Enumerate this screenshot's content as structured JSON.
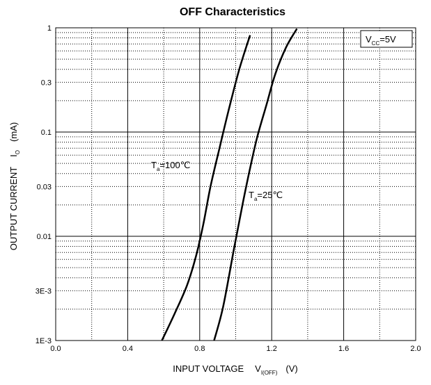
{
  "chart_data": {
    "type": "line",
    "title": "OFF Characteristics",
    "xlabel": {
      "main": "INPUT VOLTAGE",
      "symbol": "V",
      "subscript": "I(OFF)",
      "unit": "(V)"
    },
    "ylabel": {
      "main": "OUTPUT CURRENT",
      "symbol": "I",
      "subscript": "O",
      "unit": "(mA)"
    },
    "xlim": [
      0.0,
      2.0
    ],
    "ylim": [
      0.001,
      1
    ],
    "yscale": "log",
    "x_ticks": [
      {
        "value": 0.0,
        "label": "0.0"
      },
      {
        "value": 0.4,
        "label": "0.4"
      },
      {
        "value": 0.8,
        "label": "0.8"
      },
      {
        "value": 1.2,
        "label": "1.2"
      },
      {
        "value": 1.6,
        "label": "1.6"
      },
      {
        "value": 2.0,
        "label": "2.0"
      }
    ],
    "y_ticks": [
      {
        "value": 1,
        "label": "1"
      },
      {
        "value": 0.3,
        "label": "0.3"
      },
      {
        "value": 0.1,
        "label": "0.1"
      },
      {
        "value": 0.03,
        "label": "0.03"
      },
      {
        "value": 0.01,
        "label": "0.01"
      },
      {
        "value": 0.003,
        "label": "3E-3"
      },
      {
        "value": 0.001,
        "label": "1E-3"
      }
    ],
    "grid": true,
    "condition": {
      "symbol": "V",
      "subscript": "CC",
      "value": "=5V"
    },
    "series": [
      {
        "name": "Ta=100℃",
        "label_symbol": "T",
        "label_subscript": "a",
        "label_value": "=100℃",
        "color": "#000000",
        "x": [
          0.59,
          0.66,
          0.73,
          0.78,
          0.82,
          0.86,
          0.91,
          0.96,
          1.02,
          1.08
        ],
        "y": [
          0.001,
          0.0018,
          0.0034,
          0.0065,
          0.013,
          0.03,
          0.07,
          0.16,
          0.4,
          0.85
        ]
      },
      {
        "name": "Ta=25℃",
        "label_symbol": "T",
        "label_subscript": "a",
        "label_value": "=25℃",
        "color": "#000000",
        "x": [
          0.88,
          0.93,
          0.99,
          1.04,
          1.08,
          1.12,
          1.17,
          1.22,
          1.28,
          1.34
        ],
        "y": [
          0.001,
          0.0021,
          0.0075,
          0.021,
          0.045,
          0.09,
          0.18,
          0.36,
          0.65,
          0.98
        ]
      }
    ]
  }
}
